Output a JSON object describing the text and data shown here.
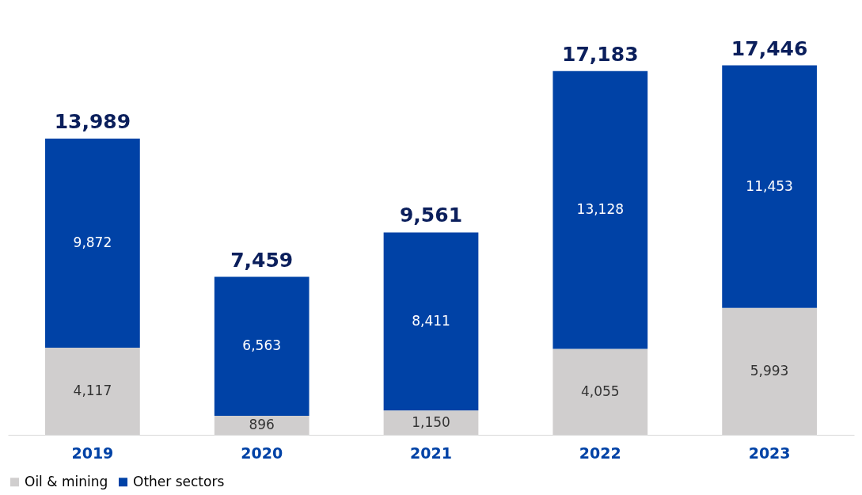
{
  "chart_data": {
    "type": "bar",
    "stacked": true,
    "legend": "bottom",
    "grid": false,
    "categories": [
      "2019",
      "2020",
      "2021",
      "2022",
      "2023"
    ],
    "series": [
      {
        "name": "Oil & mining",
        "color": "#d0cece",
        "values": [
          4117,
          896,
          1150,
          4055,
          5993
        ],
        "value_labels": [
          "4,117",
          "896",
          "1,150",
          "4,055",
          "5,993"
        ]
      },
      {
        "name": "Other sectors",
        "color": "#0042a6",
        "values": [
          9872,
          6563,
          8411,
          13128,
          11453
        ],
        "value_labels": [
          "9,872",
          "6,563",
          "8,411",
          "13,128",
          "11,453"
        ]
      }
    ],
    "totals": [
      "13,989",
      "7,459",
      "9,561",
      "17,183",
      "17,446"
    ]
  }
}
